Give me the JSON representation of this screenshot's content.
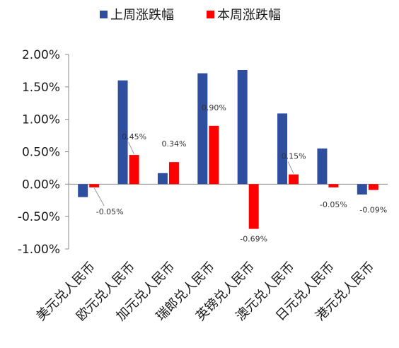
{
  "chart_data": {
    "type": "bar",
    "categories": [
      "美元兑人民币",
      "欧元兑人民币",
      "加元兑人民币",
      "瑞郎兑人民币",
      "英镑兑人民币",
      "澳元兑人民币",
      "日元兑人民币",
      "港元兑人民币"
    ],
    "series": [
      {
        "name": "上周涨跌幅",
        "color": "#2E4FA0",
        "values": [
          -0.2,
          1.6,
          0.17,
          1.71,
          1.76,
          1.09,
          0.55,
          -0.16
        ]
      },
      {
        "name": "本周涨跌幅",
        "color": "#FF0000",
        "values": [
          -0.05,
          0.45,
          0.34,
          0.9,
          -0.69,
          0.15,
          -0.05,
          -0.09
        ]
      }
    ],
    "data_labels": [
      "-0.05%",
      "0.45%",
      "0.34%",
      "0.90%",
      "-0.69%",
      "0.15%",
      "-0.05%",
      "-0.09%"
    ],
    "y_ticks": [
      "-1.00%",
      "-0.50%",
      "0.00%",
      "0.50%",
      "1.00%",
      "1.50%",
      "2.00%"
    ],
    "ylim": [
      -1.0,
      2.0
    ],
    "grid": false,
    "legend_position": "top"
  }
}
